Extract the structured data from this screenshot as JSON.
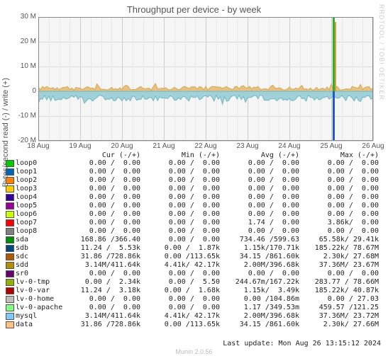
{
  "title": "Throughput per device - by week",
  "watermark": "RRDTOOL / TOBI OETIKER",
  "ylabel": "Bytes/second read (-) / write (+)",
  "chart": {
    "type": "area",
    "yticks": [
      {
        "label": "-20 M",
        "v": -20
      },
      {
        "label": "-10 M",
        "v": -10
      },
      {
        "label": "0",
        "v": 0
      },
      {
        "label": "10 M",
        "v": 10
      },
      {
        "label": "20 M",
        "v": 20
      },
      {
        "label": "30 M",
        "v": 30
      }
    ],
    "ymin": -20,
    "ymax": 30,
    "xticks": [
      "18 Aug",
      "19 Aug",
      "20 Aug",
      "21 Aug",
      "22 Aug",
      "23 Aug",
      "24 Aug",
      "25 Aug",
      "26 Aug"
    ],
    "background": "#f5f5f5",
    "grid_color": "#dcdcdc",
    "series_style": {
      "pos_fill": "#e9c080",
      "pos_line": "#d4a850",
      "neg_fill": "#a0d0d8",
      "neg_line": "#6fb8c4",
      "spike_up": "#33aa33",
      "spike_dn": "#2255cc"
    }
  },
  "columns": [
    "",
    "Cur (-/+)",
    "Min (-/+)",
    "Avg (-/+)",
    "Max (-/+)"
  ],
  "legend": [
    {
      "name": "loop0",
      "color": "#00cc00",
      "cur": "0.00 /  0.00",
      "min": "0.00 /  0.00",
      "avg": "0.00 /  0.00",
      "max": "0.00 /  0.00"
    },
    {
      "name": "loop1",
      "color": "#0066b3",
      "cur": "0.00 /  0.00",
      "min": "0.00 /  0.00",
      "avg": "0.00 /  0.00",
      "max": "0.00 /  0.00"
    },
    {
      "name": "loop2",
      "color": "#ff8000",
      "cur": "0.00 /  0.00",
      "min": "0.00 /  0.00",
      "avg": "0.00 /  0.00",
      "max": "0.00 /  0.00"
    },
    {
      "name": "loop3",
      "color": "#ffcc00",
      "cur": "0.00 /  0.00",
      "min": "0.00 /  0.00",
      "avg": "0.00 /  0.00",
      "max": "0.00 /  0.00"
    },
    {
      "name": "loop4",
      "color": "#330099",
      "cur": "0.00 /  0.00",
      "min": "0.00 /  0.00",
      "avg": "0.00 /  0.00",
      "max": "0.00 /  0.00"
    },
    {
      "name": "loop5",
      "color": "#990099",
      "cur": "0.00 /  0.00",
      "min": "0.00 /  0.00",
      "avg": "0.00 /  0.00",
      "max": "0.00 /  0.00"
    },
    {
      "name": "loop6",
      "color": "#ccff00",
      "cur": "0.00 /  0.00",
      "min": "0.00 /  0.00",
      "avg": "0.00 /  0.00",
      "max": "0.00 /  0.00"
    },
    {
      "name": "loop7",
      "color": "#ff0000",
      "cur": "0.00 /  0.00",
      "min": "0.00 /  0.00",
      "avg": "1.74 /  0.00",
      "max": "3.86k/  0.00"
    },
    {
      "name": "loop8",
      "color": "#808080",
      "cur": "0.00 /  0.00",
      "min": "0.00 /  0.00",
      "avg": "0.00 /  0.00",
      "max": "0.00 /  0.00"
    },
    {
      "name": "sda",
      "color": "#008f00",
      "cur": "168.86 /366.40",
      "min": "0.00 /  0.00",
      "avg": "734.46 /599.63",
      "max": "65.58k/ 29.41k"
    },
    {
      "name": "sdb",
      "color": "#00487d",
      "cur": "11.24 /  5.53k",
      "min": "0.00 /  1.87k",
      "avg": "1.15k/170.71k",
      "max": "185.22k/ 78.67M"
    },
    {
      "name": "sdc",
      "color": "#b35a00",
      "cur": "31.86 /728.86k",
      "min": "0.00 /113.65k",
      "avg": "34.15 /861.60k",
      "max": "2.30k/ 27.68M"
    },
    {
      "name": "sdd",
      "color": "#b38f00",
      "cur": "3.14M/411.64k",
      "min": "4.41k/ 42.17k",
      "avg": "2.00M/396.68k",
      "max": "37.36M/ 23.67M"
    },
    {
      "name": "sr0",
      "color": "#6b006b",
      "cur": "0.00 /  0.00",
      "min": "0.00 /  0.00",
      "avg": "0.00 /  0.00",
      "max": "0.00 /  0.00"
    },
    {
      "name": "lv-0-tmp",
      "color": "#8fb300",
      "cur": "0.00 /  2.34k",
      "min": "0.00 /  5.50",
      "avg": "244.67m/167.22k",
      "max": "283.77 / 78.66M"
    },
    {
      "name": "lv-0-var",
      "color": "#b30000",
      "cur": "11.24 /  3.18k",
      "min": "0.00 /  1.68k",
      "avg": "1.15k/  3.49k",
      "max": "185.22k/ 40.87k"
    },
    {
      "name": "lv-0-home",
      "color": "#bebebe",
      "cur": "0.00 /  0.00",
      "min": "0.00 /  0.00",
      "avg": "0.00 /104.86m",
      "max": "0.00 / 27.03"
    },
    {
      "name": "lv-0-apache",
      "color": "#80ff80",
      "cur": "0.00 /  0.00",
      "min": "0.00 /  0.00",
      "avg": "1.17 /349.53m",
      "max": "459.57 /121.25"
    },
    {
      "name": "mysql",
      "color": "#80c9ff",
      "cur": "3.14M/411.64k",
      "min": "4.41k/ 42.17k",
      "avg": "2.00M/396.68k",
      "max": "37.36M/ 23.72M"
    },
    {
      "name": "data",
      "color": "#ffc080",
      "cur": "31.86 /728.86k",
      "min": "0.00 /113.65k",
      "avg": "34.15 /861.60k",
      "max": "2.30k/ 27.66M"
    }
  ],
  "last_update": "Last update: Mon Aug 26 13:15:12 2024",
  "generator": "Munin 2.0.56"
}
